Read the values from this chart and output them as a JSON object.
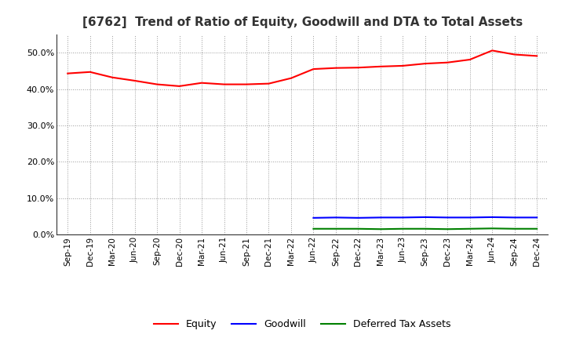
{
  "title": "[6762]  Trend of Ratio of Equity, Goodwill and DTA to Total Assets",
  "x_labels": [
    "Sep-19",
    "Dec-19",
    "Mar-20",
    "Jun-20",
    "Sep-20",
    "Dec-20",
    "Mar-21",
    "Jun-21",
    "Sep-21",
    "Dec-21",
    "Mar-22",
    "Jun-22",
    "Sep-22",
    "Dec-22",
    "Mar-23",
    "Jun-23",
    "Sep-23",
    "Dec-23",
    "Mar-24",
    "Jun-24",
    "Sep-24",
    "Dec-24"
  ],
  "equity": [
    0.443,
    0.447,
    0.432,
    0.423,
    0.413,
    0.408,
    0.417,
    0.413,
    0.413,
    0.415,
    0.43,
    0.455,
    0.458,
    0.459,
    0.462,
    0.464,
    0.47,
    0.473,
    0.481,
    0.506,
    0.495,
    0.491
  ],
  "goodwill": [
    null,
    null,
    null,
    null,
    null,
    null,
    null,
    null,
    null,
    null,
    null,
    0.046,
    0.047,
    0.046,
    0.047,
    0.047,
    0.048,
    0.047,
    0.047,
    0.048,
    0.047,
    0.047
  ],
  "dta": [
    null,
    null,
    null,
    null,
    null,
    null,
    null,
    null,
    null,
    null,
    null,
    0.016,
    0.016,
    0.016,
    0.015,
    0.016,
    0.016,
    0.015,
    0.016,
    0.017,
    0.016,
    0.016
  ],
  "equity_color": "#ff0000",
  "goodwill_color": "#0000ff",
  "dta_color": "#008000",
  "ylim": [
    0.0,
    0.55
  ],
  "yticks": [
    0.0,
    0.1,
    0.2,
    0.3,
    0.4,
    0.5
  ],
  "background_color": "#ffffff",
  "grid_color": "#999999",
  "title_color": "#333333",
  "legend_labels": [
    "Equity",
    "Goodwill",
    "Deferred Tax Assets"
  ]
}
